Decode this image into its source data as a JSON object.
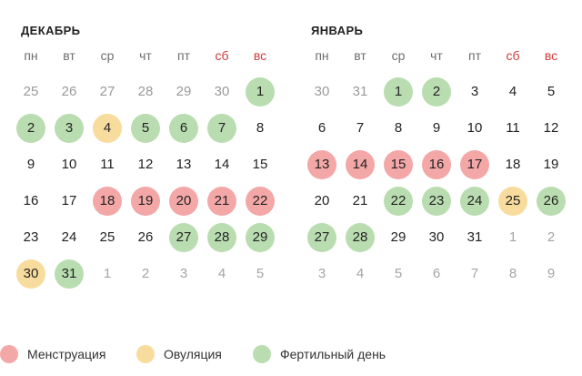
{
  "colors": {
    "menstruation": "#f4a7a7",
    "ovulation": "#f8dc9d",
    "fertile": "#b9ddb0",
    "weekend_header": "#d03a3a"
  },
  "weekdays": [
    "пн",
    "вт",
    "ср",
    "чт",
    "пт",
    "сб",
    "вс"
  ],
  "months": [
    {
      "title": "ДЕКАБРЬ",
      "rows": [
        [
          {
            "d": "25",
            "s": "muted"
          },
          {
            "d": "26",
            "s": "muted"
          },
          {
            "d": "27",
            "s": "muted"
          },
          {
            "d": "28",
            "s": "muted"
          },
          {
            "d": "29",
            "s": "muted"
          },
          {
            "d": "30",
            "s": "muted"
          },
          {
            "d": "1",
            "s": "f"
          }
        ],
        [
          {
            "d": "2",
            "s": "f"
          },
          {
            "d": "3",
            "s": "f"
          },
          {
            "d": "4",
            "s": "o"
          },
          {
            "d": "5",
            "s": "f"
          },
          {
            "d": "6",
            "s": "f"
          },
          {
            "d": "7",
            "s": "f"
          },
          {
            "d": "8",
            "s": ""
          }
        ],
        [
          {
            "d": "9",
            "s": ""
          },
          {
            "d": "10",
            "s": ""
          },
          {
            "d": "11",
            "s": ""
          },
          {
            "d": "12",
            "s": ""
          },
          {
            "d": "13",
            "s": ""
          },
          {
            "d": "14",
            "s": ""
          },
          {
            "d": "15",
            "s": ""
          }
        ],
        [
          {
            "d": "16",
            "s": ""
          },
          {
            "d": "17",
            "s": ""
          },
          {
            "d": "18",
            "s": "m"
          },
          {
            "d": "19",
            "s": "m"
          },
          {
            "d": "20",
            "s": "m"
          },
          {
            "d": "21",
            "s": "m"
          },
          {
            "d": "22",
            "s": "m"
          }
        ],
        [
          {
            "d": "23",
            "s": ""
          },
          {
            "d": "24",
            "s": ""
          },
          {
            "d": "25",
            "s": ""
          },
          {
            "d": "26",
            "s": ""
          },
          {
            "d": "27",
            "s": "f"
          },
          {
            "d": "28",
            "s": "f"
          },
          {
            "d": "29",
            "s": "f"
          }
        ],
        [
          {
            "d": "30",
            "s": "o"
          },
          {
            "d": "31",
            "s": "f"
          },
          {
            "d": "1",
            "s": "other"
          },
          {
            "d": "2",
            "s": "other"
          },
          {
            "d": "3",
            "s": "other"
          },
          {
            "d": "4",
            "s": "other"
          },
          {
            "d": "5",
            "s": "other"
          }
        ]
      ]
    },
    {
      "title": "ЯНВАРЬ",
      "rows": [
        [
          {
            "d": "30",
            "s": "muted"
          },
          {
            "d": "31",
            "s": "muted"
          },
          {
            "d": "1",
            "s": "f"
          },
          {
            "d": "2",
            "s": "f"
          },
          {
            "d": "3",
            "s": ""
          },
          {
            "d": "4",
            "s": ""
          },
          {
            "d": "5",
            "s": ""
          }
        ],
        [
          {
            "d": "6",
            "s": ""
          },
          {
            "d": "7",
            "s": ""
          },
          {
            "d": "8",
            "s": ""
          },
          {
            "d": "9",
            "s": ""
          },
          {
            "d": "10",
            "s": ""
          },
          {
            "d": "11",
            "s": ""
          },
          {
            "d": "12",
            "s": ""
          }
        ],
        [
          {
            "d": "13",
            "s": "m"
          },
          {
            "d": "14",
            "s": "m"
          },
          {
            "d": "15",
            "s": "m"
          },
          {
            "d": "16",
            "s": "m"
          },
          {
            "d": "17",
            "s": "m"
          },
          {
            "d": "18",
            "s": ""
          },
          {
            "d": "19",
            "s": ""
          }
        ],
        [
          {
            "d": "20",
            "s": ""
          },
          {
            "d": "21",
            "s": ""
          },
          {
            "d": "22",
            "s": "f"
          },
          {
            "d": "23",
            "s": "f"
          },
          {
            "d": "24",
            "s": "f"
          },
          {
            "d": "25",
            "s": "o"
          },
          {
            "d": "26",
            "s": "f"
          }
        ],
        [
          {
            "d": "27",
            "s": "f"
          },
          {
            "d": "28",
            "s": "f"
          },
          {
            "d": "29",
            "s": ""
          },
          {
            "d": "30",
            "s": ""
          },
          {
            "d": "31",
            "s": ""
          },
          {
            "d": "1",
            "s": "other"
          },
          {
            "d": "2",
            "s": "other"
          }
        ],
        [
          {
            "d": "3",
            "s": "other"
          },
          {
            "d": "4",
            "s": "other"
          },
          {
            "d": "5",
            "s": "other"
          },
          {
            "d": "6",
            "s": "other"
          },
          {
            "d": "7",
            "s": "other"
          },
          {
            "d": "8",
            "s": "other"
          },
          {
            "d": "9",
            "s": "other"
          }
        ]
      ]
    }
  ],
  "legend": [
    {
      "label": "Менструация",
      "color": "#f4a7a7"
    },
    {
      "label": "Овуляция",
      "color": "#f8dc9d"
    },
    {
      "label": "Фертильный день",
      "color": "#b9ddb0"
    }
  ]
}
